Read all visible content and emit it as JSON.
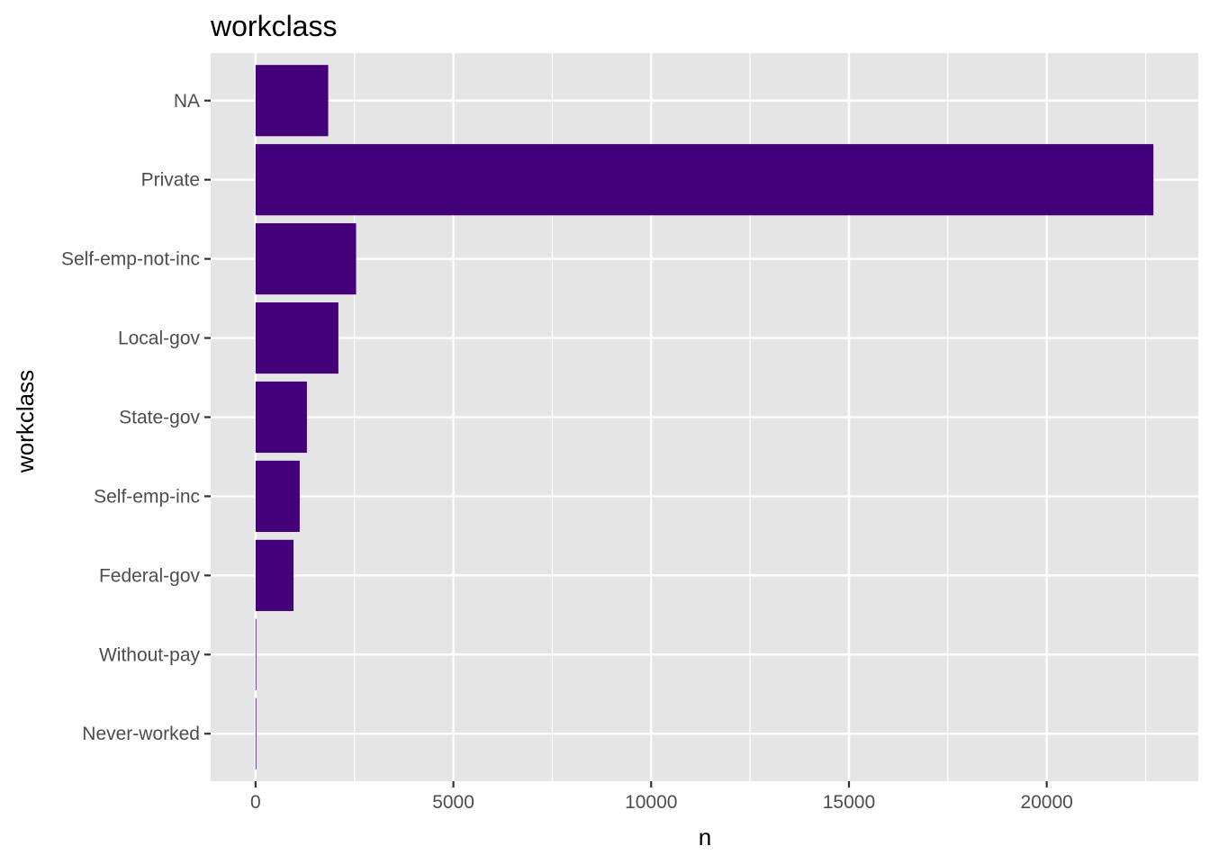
{
  "chart_data": {
    "type": "bar",
    "orientation": "horizontal",
    "title": "workclass",
    "xlabel": "n",
    "ylabel": "workclass",
    "categories": [
      "NA",
      "Private",
      "Self-emp-not-inc",
      "Local-gov",
      "State-gov",
      "Self-emp-inc",
      "Federal-gov",
      "Without-pay",
      "Never-worked"
    ],
    "values": [
      1836,
      22696,
      2541,
      2093,
      1298,
      1116,
      960,
      14,
      7
    ],
    "xlim": [
      -1135,
      23831
    ],
    "x_ticks": [
      0,
      5000,
      10000,
      15000,
      20000
    ],
    "x_tick_labels": [
      "0",
      "5000",
      "10000",
      "15000",
      "20000"
    ],
    "grid": true,
    "legend": "none",
    "colors": {
      "bar": "#440078",
      "panel": "#e5e5e5",
      "grid": "#ffffff",
      "tick_text": "#4d4d4d",
      "tick_mark": "#333333"
    }
  }
}
